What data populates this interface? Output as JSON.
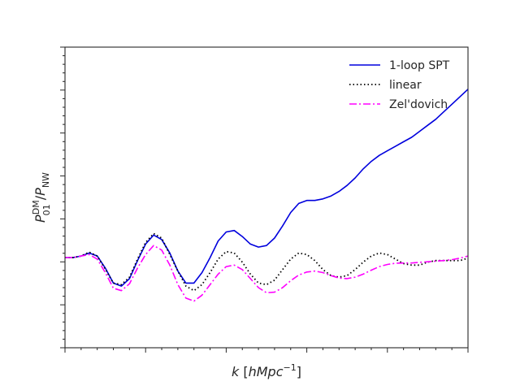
{
  "chart_data": {
    "type": "line",
    "title": "",
    "xlabel": {
      "italic": "k",
      "rest": " [",
      "unit_main": "hMpc",
      "unit_sup": "−1",
      "close": "]"
    },
    "ylabel": {
      "p1": "P",
      "p1_sup": "DM",
      "p1_sub": "01",
      "sep": " /",
      "p2": "P",
      "p2_sub": "NW"
    },
    "tick_labels_shown": false,
    "legend_position": "top-right",
    "grid": false,
    "xlim": [
      0,
      1
    ],
    "ylim": [
      0,
      1
    ],
    "series": [
      {
        "name": "1-loop SPT",
        "color": "#0000dd",
        "style": "solid",
        "x": [
          0.0,
          0.02,
          0.04,
          0.06,
          0.08,
          0.1,
          0.12,
          0.14,
          0.16,
          0.18,
          0.2,
          0.22,
          0.24,
          0.26,
          0.28,
          0.3,
          0.32,
          0.34,
          0.36,
          0.38,
          0.4,
          0.42,
          0.44,
          0.46,
          0.48,
          0.5,
          0.52,
          0.54,
          0.56,
          0.58,
          0.6,
          0.62,
          0.64,
          0.66,
          0.68,
          0.7,
          0.72,
          0.74,
          0.76,
          0.78,
          0.8,
          0.82,
          0.84,
          0.86,
          0.88,
          0.9,
          0.92,
          0.94,
          0.96,
          0.98,
          1.0
        ],
        "y": [
          0.3,
          0.3,
          0.305,
          0.315,
          0.305,
          0.265,
          0.215,
          0.205,
          0.23,
          0.29,
          0.345,
          0.375,
          0.36,
          0.315,
          0.255,
          0.215,
          0.215,
          0.25,
          0.3,
          0.355,
          0.385,
          0.39,
          0.37,
          0.345,
          0.335,
          0.34,
          0.365,
          0.405,
          0.45,
          0.48,
          0.49,
          0.49,
          0.495,
          0.505,
          0.52,
          0.54,
          0.565,
          0.595,
          0.62,
          0.64,
          0.655,
          0.67,
          0.685,
          0.7,
          0.72,
          0.74,
          0.76,
          0.785,
          0.81,
          0.835,
          0.86
        ]
      },
      {
        "name": "linear",
        "color": "#000000",
        "style": "dotted",
        "x": [
          0.0,
          0.02,
          0.04,
          0.06,
          0.08,
          0.1,
          0.12,
          0.14,
          0.16,
          0.18,
          0.2,
          0.22,
          0.24,
          0.26,
          0.28,
          0.3,
          0.32,
          0.34,
          0.36,
          0.38,
          0.4,
          0.42,
          0.44,
          0.46,
          0.48,
          0.5,
          0.52,
          0.54,
          0.56,
          0.58,
          0.6,
          0.62,
          0.64,
          0.66,
          0.68,
          0.7,
          0.72,
          0.74,
          0.76,
          0.78,
          0.8,
          0.82,
          0.84,
          0.86,
          0.88,
          0.9,
          0.92,
          0.94,
          0.96,
          0.98,
          1.0
        ],
        "y": [
          0.3,
          0.3,
          0.305,
          0.318,
          0.305,
          0.262,
          0.215,
          0.21,
          0.235,
          0.295,
          0.35,
          0.38,
          0.365,
          0.31,
          0.255,
          0.205,
          0.19,
          0.21,
          0.25,
          0.295,
          0.32,
          0.315,
          0.285,
          0.245,
          0.215,
          0.21,
          0.225,
          0.26,
          0.295,
          0.315,
          0.31,
          0.29,
          0.26,
          0.24,
          0.235,
          0.24,
          0.26,
          0.285,
          0.305,
          0.315,
          0.31,
          0.295,
          0.28,
          0.275,
          0.275,
          0.285,
          0.29,
          0.29,
          0.29,
          0.29,
          0.298
        ]
      },
      {
        "name": "Zel'dovich",
        "color": "#ff00ff",
        "style": "dashdot",
        "x": [
          0.0,
          0.02,
          0.04,
          0.06,
          0.08,
          0.1,
          0.12,
          0.14,
          0.16,
          0.18,
          0.2,
          0.22,
          0.24,
          0.26,
          0.28,
          0.3,
          0.32,
          0.34,
          0.36,
          0.38,
          0.4,
          0.42,
          0.44,
          0.46,
          0.48,
          0.5,
          0.52,
          0.54,
          0.56,
          0.58,
          0.6,
          0.62,
          0.64,
          0.66,
          0.68,
          0.7,
          0.72,
          0.74,
          0.76,
          0.78,
          0.8,
          0.82,
          0.84,
          0.86,
          0.88,
          0.9,
          0.92,
          0.94,
          0.96,
          0.98,
          1.0
        ],
        "y": [
          0.3,
          0.3,
          0.305,
          0.31,
          0.295,
          0.25,
          0.198,
          0.19,
          0.213,
          0.265,
          0.31,
          0.34,
          0.325,
          0.275,
          0.21,
          0.165,
          0.155,
          0.175,
          0.21,
          0.245,
          0.27,
          0.275,
          0.26,
          0.23,
          0.2,
          0.183,
          0.185,
          0.2,
          0.223,
          0.242,
          0.252,
          0.255,
          0.25,
          0.24,
          0.232,
          0.23,
          0.235,
          0.245,
          0.258,
          0.27,
          0.277,
          0.281,
          0.282,
          0.282,
          0.284,
          0.286,
          0.288,
          0.29,
          0.293,
          0.298,
          0.305
        ]
      }
    ]
  }
}
